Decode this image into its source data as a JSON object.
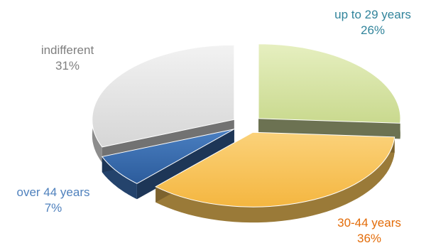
{
  "chart_data": {
    "type": "pie",
    "title": "",
    "legend": "none",
    "slices": [
      {
        "label": "up to 29 years",
        "value": 26,
        "value_label": "26%",
        "color": "#D7E4A3",
        "text_color": "#31849B"
      },
      {
        "label": "30-44 years",
        "value": 36,
        "value_label": "36%",
        "color": "#F9C55B",
        "text_color": "#E36C09"
      },
      {
        "label": "over 44 years",
        "value": 7,
        "value_label": "7%",
        "color": "#3A6CAE",
        "text_color": "#4F81BD"
      },
      {
        "label": "indifferent",
        "value": 31,
        "value_label": "31%",
        "color": "#E3E3E3",
        "text_color": "#7F7F7F"
      }
    ]
  }
}
